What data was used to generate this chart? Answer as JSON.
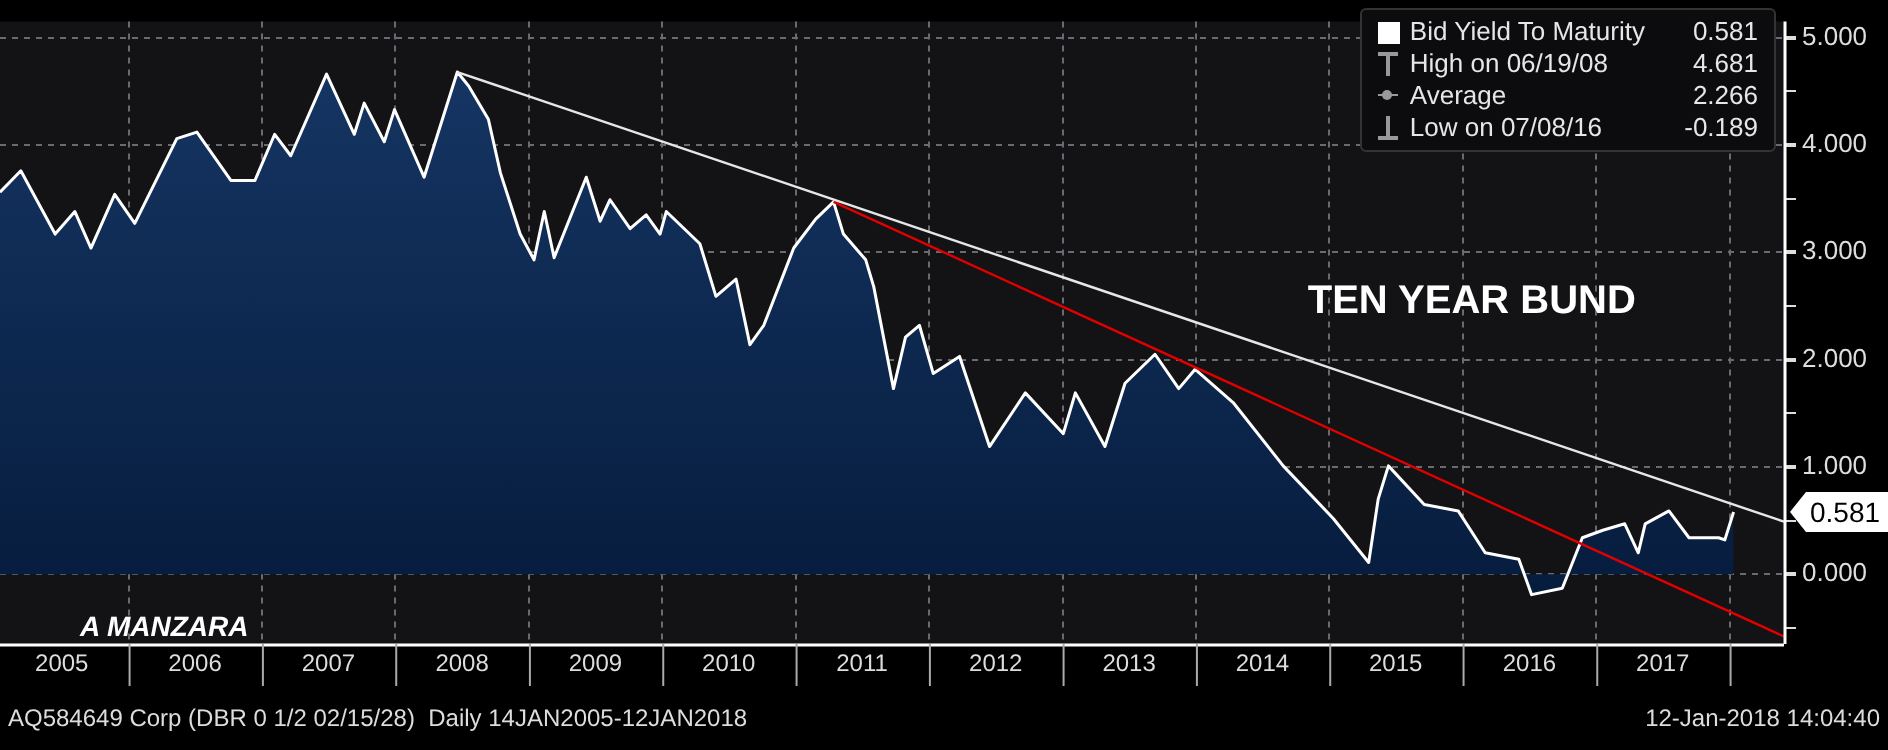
{
  "chart_data": {
    "type": "area",
    "title": "TEN YEAR BUND",
    "xlim": [
      "2005-01-14",
      "2018-05-30"
    ],
    "xticks": [
      {
        "value": "2005-07-02",
        "label": "2005"
      },
      {
        "value": "2006-01-01",
        "label": null
      },
      {
        "value": "2006-07-02",
        "label": "2006"
      },
      {
        "value": "2007-01-01",
        "label": null
      },
      {
        "value": "2007-07-02",
        "label": "2007"
      },
      {
        "value": "2008-01-01",
        "label": null
      },
      {
        "value": "2008-07-02",
        "label": "2008"
      },
      {
        "value": "2009-01-01",
        "label": null
      },
      {
        "value": "2009-07-02",
        "label": "2009"
      },
      {
        "value": "2010-01-01",
        "label": null
      },
      {
        "value": "2010-07-02",
        "label": "2010"
      },
      {
        "value": "2011-01-01",
        "label": null
      },
      {
        "value": "2011-07-02",
        "label": "2011"
      },
      {
        "value": "2012-01-01",
        "label": null
      },
      {
        "value": "2012-07-02",
        "label": "2012"
      },
      {
        "value": "2013-01-01",
        "label": null
      },
      {
        "value": "2013-07-02",
        "label": "2013"
      },
      {
        "value": "2014-01-01",
        "label": null
      },
      {
        "value": "2014-07-02",
        "label": "2014"
      },
      {
        "value": "2015-01-01",
        "label": null
      },
      {
        "value": "2015-07-02",
        "label": "2015"
      },
      {
        "value": "2016-01-01",
        "label": null
      },
      {
        "value": "2016-07-02",
        "label": "2016"
      },
      {
        "value": "2017-01-01",
        "label": null
      },
      {
        "value": "2017-07-02",
        "label": "2017"
      },
      {
        "value": "2018-01-01",
        "label": null
      }
    ],
    "ylim": [
      -0.65,
      5.15
    ],
    "yticks": [
      {
        "value": -0.5,
        "label": null
      },
      {
        "value": 0,
        "label": "0.000"
      },
      {
        "value": 0.5,
        "label": null
      },
      {
        "value": 1,
        "label": "1.000"
      },
      {
        "value": 1.5,
        "label": null
      },
      {
        "value": 2,
        "label": "2.000"
      },
      {
        "value": 2.5,
        "label": null
      },
      {
        "value": 3,
        "label": "3.000"
      },
      {
        "value": 3.5,
        "label": null
      },
      {
        "value": 4,
        "label": "4.000"
      },
      {
        "value": 4.5,
        "label": null
      },
      {
        "value": 5,
        "label": "5.000"
      }
    ],
    "grid": true,
    "legend": "top right",
    "marker": "none",
    "series": [
      {
        "name": "Bid Yield To Maturity",
        "color": "#ffffff",
        "x": [
          "2005-01-14",
          "2005-03-12",
          "2005-06-14",
          "2005-08-07",
          "2005-09-20",
          "2005-11-24",
          "2006-01-18",
          "2006-05-13",
          "2006-07-07",
          "2006-10-08",
          "2006-12-13",
          "2007-02-05",
          "2007-03-21",
          "2007-06-27",
          "2007-09-11",
          "2007-10-08",
          "2007-12-02",
          "2007-12-30",
          "2008-03-20",
          "2008-06-19",
          "2008-07-20",
          "2008-09-12",
          "2008-10-15",
          "2008-12-08",
          "2009-01-15",
          "2009-02-12",
          "2009-03-11",
          "2009-06-07",
          "2009-07-15",
          "2009-08-11",
          "2009-10-05",
          "2009-11-18",
          "2009-12-26",
          "2010-01-12",
          "2010-04-14",
          "2010-05-28",
          "2010-07-22",
          "2010-08-29",
          "2010-10-06",
          "2010-12-27",
          "2011-02-25",
          "2011-04-15",
          "2011-05-12",
          "2011-07-12",
          "2011-08-03",
          "2011-09-26",
          "2011-10-29",
          "2011-12-06",
          "2012-01-13",
          "2012-03-25",
          "2012-06-15",
          "2012-09-21",
          "2013-01-03",
          "2013-02-05",
          "2013-04-27",
          "2013-06-21",
          "2013-09-11",
          "2013-11-15",
          "2013-12-30",
          "2014-04-13",
          "2014-08-28",
          "2015-01-12",
          "2015-04-19",
          "2015-05-15",
          "2015-06-12",
          "2015-09-18",
          "2015-12-20",
          "2016-03-03",
          "2016-06-03",
          "2016-07-08",
          "2016-09-30",
          "2016-11-24",
          "2017-01-19",
          "2017-03-20",
          "2017-04-26",
          "2017-05-15",
          "2017-07-19",
          "2017-09-12",
          "2017-12-02",
          "2017-12-19",
          "2018-01-12"
        ],
        "values": [
          3.56,
          3.76,
          3.17,
          3.38,
          3.04,
          3.54,
          3.27,
          4.06,
          4.12,
          3.67,
          3.67,
          4.1,
          3.9,
          4.66,
          4.1,
          4.39,
          4.03,
          4.33,
          3.7,
          4.68,
          4.55,
          4.24,
          3.74,
          3.17,
          2.93,
          3.38,
          2.95,
          3.7,
          3.29,
          3.49,
          3.22,
          3.35,
          3.17,
          3.38,
          3.08,
          2.59,
          2.75,
          2.14,
          2.32,
          3.04,
          3.31,
          3.47,
          3.17,
          2.93,
          2.68,
          1.73,
          2.21,
          2.32,
          1.87,
          2.03,
          1.19,
          1.69,
          1.31,
          1.69,
          1.19,
          1.78,
          2.05,
          1.73,
          1.91,
          1.6,
          1.01,
          0.52,
          0.11,
          0.7,
          1.01,
          0.65,
          0.59,
          0.2,
          0.14,
          -0.19,
          -0.13,
          0.34,
          0.41,
          0.47,
          0.2,
          0.47,
          0.59,
          0.34,
          0.34,
          0.32,
          0.58
        ]
      },
      {
        "type": "line",
        "color": "#e6e6e6",
        "x": [
          "2008-06-19",
          "2018-05-30"
        ],
        "values": [
          4.68,
          0.49
        ]
      },
      {
        "type": "line",
        "color": "#e00000",
        "x": [
          "2011-04-15",
          "2018-05-30"
        ],
        "values": [
          3.47,
          -0.58
        ]
      }
    ],
    "annotations": [
      "0.581",
      "High on 06/19/08",
      "4.681",
      "Average",
      "2.266",
      "Low on 07/08/16",
      "-0.189",
      "A MANZARA",
      "AQ584649 Corp (DBR 0 1/2 02/15/28)  Daily 14JAN2005-12JAN2018",
      "12-Jan-2018 14:04:40",
      {
        "text": "0.581",
        "x": "2018-01-12",
        "y": 0.581
      }
    ]
  }
}
